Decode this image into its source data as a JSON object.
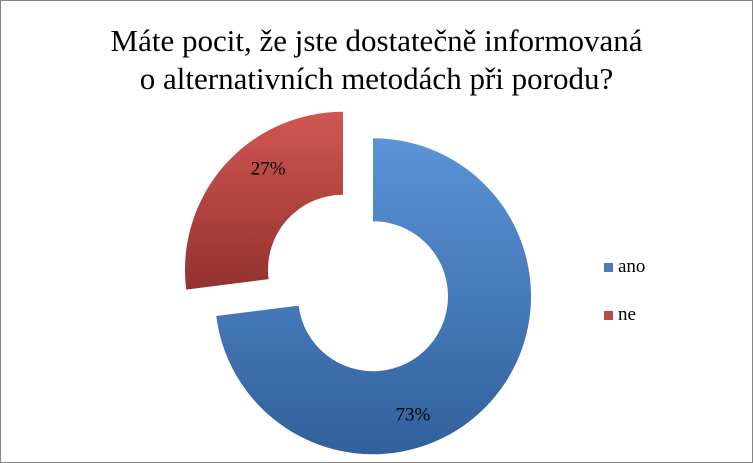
{
  "chart_data": {
    "type": "donut",
    "title": [
      "Máte pocit, že jste dostatečně informovaná",
      "o alternativních metodách při porodu?"
    ],
    "categories": [
      "ano",
      "ne"
    ],
    "values": [
      73,
      27
    ],
    "data_labels": [
      "73%",
      "27%"
    ],
    "colors": [
      "#4a7ebb",
      "#be4b48"
    ],
    "legend_position": "right",
    "exploded": true
  }
}
